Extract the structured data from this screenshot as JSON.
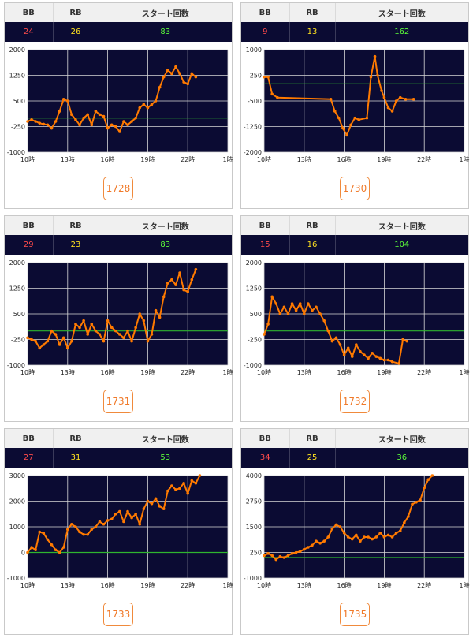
{
  "colors": {
    "bb": "#ff4b4b",
    "rb": "#ffe21f",
    "start": "#5dff3a",
    "plot_bg": "#0b0b33",
    "line": "#ff7a00",
    "zero_line": "#2fb52f",
    "grid": "#d8d8d8",
    "button": "#f07a2a"
  },
  "headers": {
    "bb": "BB",
    "rb": "RB",
    "start": "スタート回数"
  },
  "cards": [
    {
      "bb": "24",
      "rb": "26",
      "start": "83",
      "machine": "1728"
    },
    {
      "bb": "9",
      "rb": "13",
      "start": "162",
      "machine": "1730"
    },
    {
      "bb": "29",
      "rb": "23",
      "start": "83",
      "machine": "1731"
    },
    {
      "bb": "15",
      "rb": "16",
      "start": "104",
      "machine": "1732"
    },
    {
      "bb": "27",
      "rb": "31",
      "start": "53",
      "machine": "1733"
    },
    {
      "bb": "34",
      "rb": "25",
      "start": "36",
      "machine": "1735"
    }
  ],
  "chart_data": [
    {
      "type": "line",
      "xticks": [
        "10時",
        "13時",
        "16時",
        "19時",
        "22時",
        "1時"
      ],
      "xlim": [
        10,
        25
      ],
      "ylim": [
        -1000,
        2000
      ],
      "yticks": [
        "2000",
        "1250",
        "500",
        "-250",
        "-1000"
      ],
      "ytick_values": [
        2000,
        1250,
        500,
        -250,
        -1000
      ],
      "grid": true,
      "x": [
        10,
        10.3,
        10.6,
        10.9,
        11.2,
        11.5,
        11.8,
        12.1,
        12.4,
        12.7,
        13.0,
        13.3,
        13.6,
        13.9,
        14.2,
        14.5,
        14.8,
        15.1,
        15.4,
        15.7,
        16.0,
        16.3,
        16.6,
        16.9,
        17.2,
        17.5,
        17.8,
        18.1,
        18.4,
        18.7,
        19.0,
        19.3,
        19.6,
        19.9,
        20.2,
        20.5,
        20.8,
        21.1,
        21.4,
        21.7,
        22.0,
        22.3,
        22.6
      ],
      "y": [
        -100,
        -50,
        -100,
        -150,
        -180,
        -200,
        -300,
        -100,
        200,
        550,
        500,
        100,
        -50,
        -200,
        0,
        100,
        -200,
        200,
        100,
        50,
        -300,
        -200,
        -250,
        -400,
        -100,
        -200,
        -100,
        0,
        300,
        400,
        300,
        400,
        500,
        900,
        1200,
        1400,
        1300,
        1500,
        1300,
        1050,
        1000,
        1300,
        1200
      ]
    },
    {
      "type": "line",
      "xticks": [
        "10時",
        "13時",
        "16時",
        "19時",
        "22時",
        "1時"
      ],
      "xlim": [
        10,
        25
      ],
      "ylim": [
        -2000,
        1000
      ],
      "yticks": [
        "1000",
        "250",
        "-500",
        "-1250",
        "-2000"
      ],
      "ytick_values": [
        1000,
        250,
        -500,
        -1250,
        -2000
      ],
      "grid": true,
      "x": [
        10,
        10.3,
        10.6,
        11.0,
        15.0,
        15.3,
        15.6,
        15.9,
        16.2,
        16.5,
        16.8,
        17.1,
        17.7,
        18.0,
        18.3,
        18.5,
        18.8,
        19.0,
        19.3,
        19.6,
        19.9,
        20.2,
        20.6,
        21.2
      ],
      "y": [
        200,
        200,
        -300,
        -400,
        -450,
        -800,
        -1000,
        -1300,
        -1500,
        -1200,
        -1000,
        -1050,
        -1000,
        200,
        800,
        250,
        -200,
        -400,
        -700,
        -800,
        -500,
        -400,
        -450,
        -450
      ]
    },
    {
      "type": "line",
      "xticks": [
        "10時",
        "13時",
        "16時",
        "19時",
        "22時",
        "1時"
      ],
      "xlim": [
        10,
        25
      ],
      "ylim": [
        -1000,
        2000
      ],
      "yticks": [
        "2000",
        "1250",
        "500",
        "-250",
        "-1000"
      ],
      "ytick_values": [
        2000,
        1250,
        500,
        -250,
        -1000
      ],
      "grid": true,
      "x": [
        10,
        10.3,
        10.6,
        10.9,
        11.2,
        11.5,
        11.8,
        12.1,
        12.4,
        12.7,
        13.0,
        13.3,
        13.6,
        13.9,
        14.2,
        14.5,
        14.8,
        15.1,
        15.4,
        15.7,
        16.0,
        16.3,
        16.6,
        16.9,
        17.2,
        17.5,
        17.8,
        18.1,
        18.4,
        18.7,
        19.0,
        19.3,
        19.6,
        19.9,
        20.2,
        20.5,
        20.8,
        21.1,
        21.4,
        21.7,
        22.0,
        22.3,
        22.6
      ],
      "y": [
        -200,
        -250,
        -300,
        -500,
        -400,
        -300,
        0,
        -100,
        -400,
        -200,
        -500,
        -300,
        200,
        100,
        300,
        -100,
        200,
        0,
        -100,
        -300,
        300,
        100,
        0,
        -100,
        -200,
        0,
        -300,
        100,
        500,
        300,
        -300,
        -100,
        600,
        400,
        1000,
        1400,
        1500,
        1350,
        1700,
        1200,
        1150,
        1500,
        1800
      ]
    },
    {
      "type": "line",
      "xticks": [
        "10時",
        "13時",
        "16時",
        "19時",
        "22時",
        "1時"
      ],
      "xlim": [
        10,
        25
      ],
      "ylim": [
        -1000,
        2000
      ],
      "yticks": [
        "2000",
        "1250",
        "500",
        "-250",
        "-1000"
      ],
      "ytick_values": [
        2000,
        1250,
        500,
        -250,
        -1000
      ],
      "grid": true,
      "x": [
        10,
        10.3,
        10.6,
        10.9,
        11.2,
        11.5,
        11.8,
        12.1,
        12.4,
        12.7,
        13.0,
        13.3,
        13.6,
        13.9,
        14.2,
        14.5,
        14.8,
        15.1,
        15.4,
        15.7,
        16.0,
        16.3,
        16.6,
        16.9,
        17.2,
        17.5,
        17.8,
        18.1,
        18.4,
        18.7,
        19.0,
        19.3,
        19.6,
        20.1,
        20.4,
        20.7
      ],
      "y": [
        -100,
        200,
        1000,
        800,
        500,
        700,
        500,
        800,
        600,
        800,
        500,
        800,
        600,
        700,
        500,
        300,
        0,
        -300,
        -200,
        -400,
        -700,
        -500,
        -750,
        -400,
        -600,
        -700,
        -800,
        -650,
        -750,
        -800,
        -850,
        -850,
        -900,
        -950,
        -250,
        -300
      ]
    },
    {
      "type": "line",
      "xticks": [
        "10時",
        "13時",
        "16時",
        "19時",
        "22時",
        "1時"
      ],
      "xlim": [
        10,
        25
      ],
      "ylim": [
        -1000,
        3000
      ],
      "yticks": [
        "3000",
        "2000",
        "1000",
        "0",
        "-1000"
      ],
      "ytick_values": [
        3000,
        2000,
        1000,
        0,
        -1000
      ],
      "grid": true,
      "x": [
        10,
        10.3,
        10.6,
        10.9,
        11.2,
        11.5,
        11.8,
        12.1,
        12.4,
        12.7,
        13.0,
        13.3,
        13.6,
        13.9,
        14.2,
        14.5,
        14.8,
        15.1,
        15.4,
        15.7,
        16.0,
        16.3,
        16.6,
        16.9,
        17.2,
        17.5,
        17.8,
        18.1,
        18.4,
        18.7,
        19.0,
        19.3,
        19.6,
        19.9,
        20.2,
        20.5,
        20.8,
        21.1,
        21.4,
        21.7,
        22.0,
        22.3,
        22.6,
        22.9
      ],
      "y": [
        0,
        200,
        100,
        800,
        750,
        500,
        300,
        100,
        0,
        200,
        900,
        1100,
        1000,
        800,
        700,
        700,
        900,
        1000,
        1200,
        1100,
        1250,
        1300,
        1500,
        1600,
        1200,
        1600,
        1350,
        1500,
        1100,
        1700,
        2000,
        1900,
        2100,
        1800,
        1700,
        2400,
        2600,
        2450,
        2500,
        2700,
        2300,
        2800,
        2700,
        3000
      ]
    },
    {
      "type": "line",
      "xticks": [
        "10時",
        "13時",
        "16時",
        "19時",
        "22時",
        "1時"
      ],
      "xlim": [
        10,
        25
      ],
      "ylim": [
        -1000,
        4000
      ],
      "yticks": [
        "4000",
        "2750",
        "1500",
        "250",
        "-1000"
      ],
      "ytick_values": [
        4000,
        2750,
        1500,
        250,
        -1000
      ],
      "grid": true,
      "x": [
        10,
        10.3,
        10.6,
        10.9,
        11.2,
        11.5,
        11.8,
        12.1,
        12.4,
        12.7,
        13.0,
        13.3,
        13.6,
        13.9,
        14.2,
        14.5,
        14.8,
        15.1,
        15.4,
        15.7,
        16.0,
        16.3,
        16.6,
        16.9,
        17.2,
        17.5,
        17.8,
        18.1,
        18.4,
        18.7,
        19.0,
        19.3,
        19.6,
        19.9,
        20.2,
        20.5,
        20.8,
        21.1,
        21.4,
        21.7,
        22.0,
        22.3,
        22.6
      ],
      "y": [
        100,
        200,
        100,
        -100,
        50,
        0,
        100,
        200,
        250,
        300,
        400,
        500,
        600,
        800,
        700,
        800,
        1000,
        1400,
        1600,
        1500,
        1200,
        1000,
        900,
        1100,
        800,
        1000,
        1000,
        900,
        1000,
        1200,
        1000,
        1100,
        1000,
        1200,
        1300,
        1700,
        2000,
        2600,
        2700,
        2800,
        3400,
        3800,
        4000
      ]
    }
  ]
}
